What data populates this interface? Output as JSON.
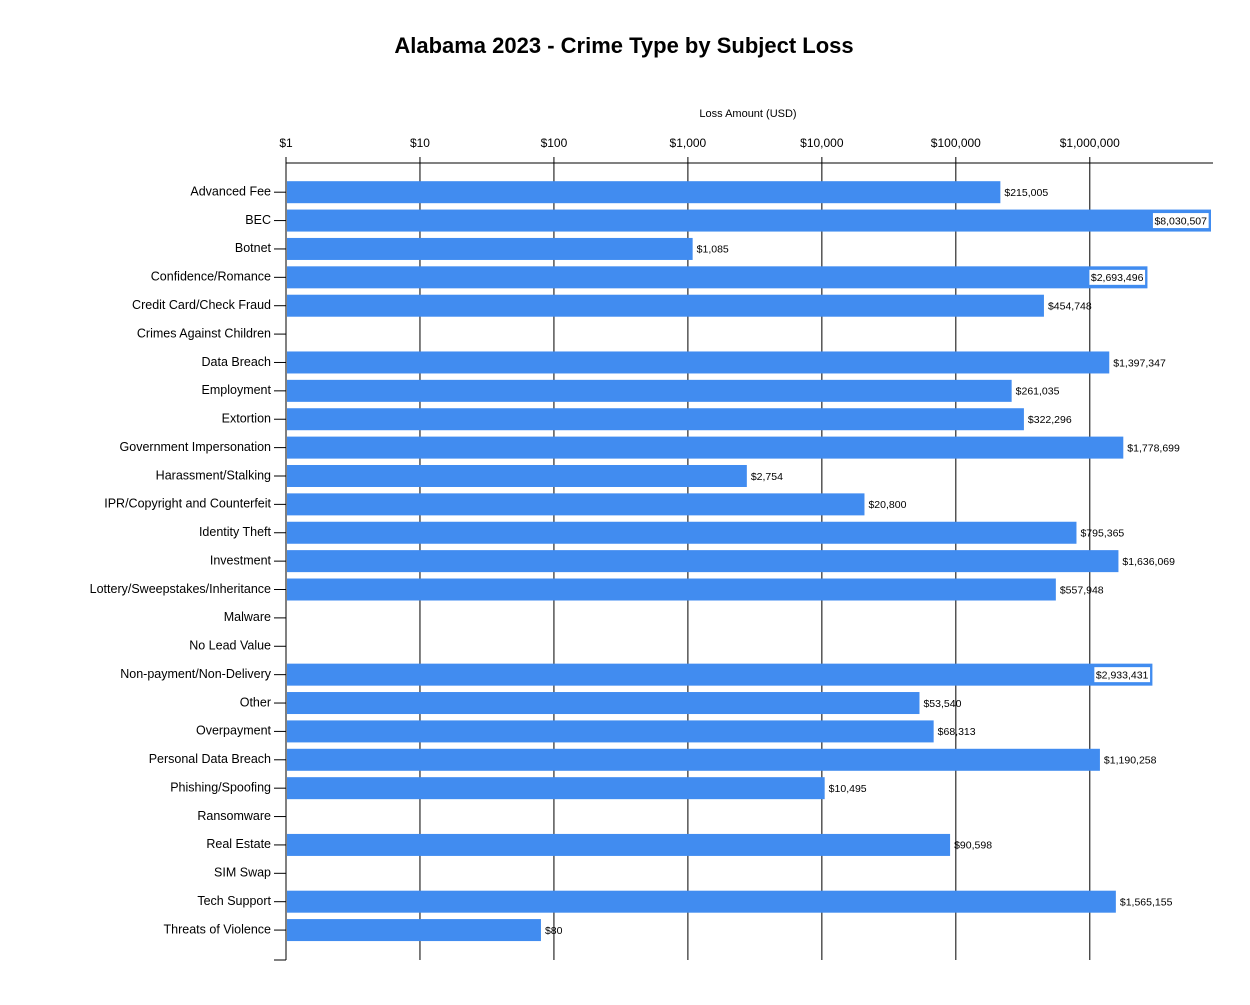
{
  "chart_data": {
    "type": "bar",
    "orientation": "horizontal",
    "title": "Alabama 2023 - Crime Type by Subject Loss",
    "x_label": "Loss Amount (USD)",
    "x_scale": "log",
    "grid": true,
    "color": "#418cf0",
    "categories": [
      "Advanced Fee",
      "BEC",
      "Botnet",
      "Confidence/Romance",
      "Credit Card/Check Fraud",
      "Crimes Against Children",
      "Data Breach",
      "Employment",
      "Extortion",
      "Government Impersonation",
      "Harassment/Stalking",
      "IPR/Copyright and Counterfeit",
      "Identity Theft",
      "Investment",
      "Lottery/Sweepstakes/Inheritance",
      "Malware",
      "No Lead Value",
      "Non-payment/Non-Delivery",
      "Other",
      "Overpayment",
      "Personal Data Breach",
      "Phishing/Spoofing",
      "Ransomware",
      "Real Estate",
      "SIM Swap",
      "Tech Support",
      "Threats of Violence"
    ],
    "values": [
      215005,
      8030507,
      1085,
      2693496,
      454748,
      null,
      1397347,
      261035,
      322296,
      1778699,
      2754,
      20800,
      795365,
      1636069,
      557948,
      null,
      null,
      2933431,
      53540,
      68313,
      1190258,
      10495,
      null,
      90598,
      null,
      1565155,
      80
    ],
    "value_labels": [
      "$215,005",
      "$8,030,507",
      "$1,085",
      "$2,693,496",
      "$454,748",
      null,
      "$1,397,347",
      "$261,035",
      "$322,296",
      "$1,778,699",
      "$2,754",
      "$20,800",
      "$795,365",
      "$1,636,069",
      "$557,948",
      null,
      null,
      "$2,933,431",
      "$53,540",
      "$68,313",
      "$1,190,258",
      "$10,495",
      null,
      "$90,598",
      null,
      "$1,565,155",
      "$80"
    ],
    "xlim": [
      1,
      8030507
    ],
    "xticks": [
      {
        "value": 1,
        "label": "$1"
      },
      {
        "value": 10,
        "label": "$10"
      },
      {
        "value": 100,
        "label": "$100"
      },
      {
        "value": 1000,
        "label": "$1,000"
      },
      {
        "value": 10000,
        "label": "$10,000"
      },
      {
        "value": 100000,
        "label": "$100,000"
      },
      {
        "value": 1000000,
        "label": "$1,000,000"
      }
    ]
  }
}
